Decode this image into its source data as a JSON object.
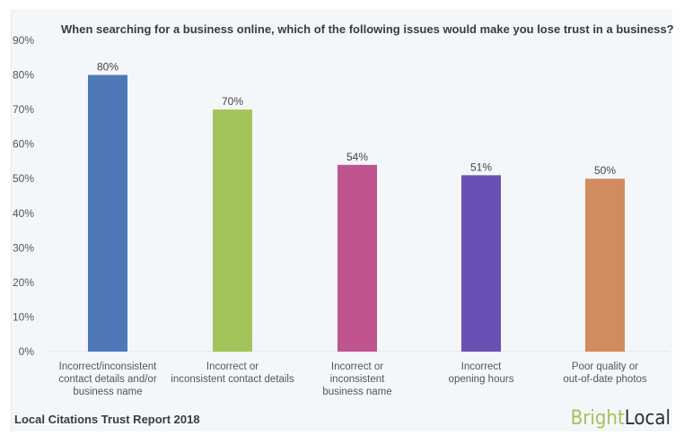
{
  "chart_data": {
    "type": "bar",
    "title": "When searching for a business online, which of the following issues would make you lose trust in a business?",
    "categories": [
      [
        "Incorrect/inconsistent",
        "contact details and/or",
        "business name"
      ],
      [
        "Incorrect or",
        "inconsistent contact details"
      ],
      [
        "Incorrect or",
        "inconsistent",
        "business name"
      ],
      [
        "Incorrect",
        "opening hours"
      ],
      [
        "Poor quality or",
        "out-of-date photos"
      ]
    ],
    "values": [
      80,
      70,
      54,
      51,
      50
    ],
    "data_labels": [
      "80%",
      "70%",
      "54%",
      "51%",
      "50%"
    ],
    "colors": [
      "#4f78b8",
      "#a3c45a",
      "#bf548e",
      "#6a50b5",
      "#d08b5e"
    ],
    "ylim": [
      0,
      90
    ],
    "yticks": [
      0,
      10,
      20,
      30,
      40,
      50,
      60,
      70,
      80,
      90
    ],
    "ytick_labels": [
      "0%",
      "10%",
      "20%",
      "30%",
      "40%",
      "50%",
      "60%",
      "70%",
      "80%",
      "90%"
    ],
    "xlabel": "",
    "ylabel": "",
    "grid": false,
    "legend": "none"
  },
  "footer": {
    "source": "Local Citations Trust Report 2018",
    "brand_part1": "Bright",
    "brand_part2": "Local",
    "brand_color_1": "#a5c25a",
    "brand_color_2": "#2f2f2f"
  }
}
